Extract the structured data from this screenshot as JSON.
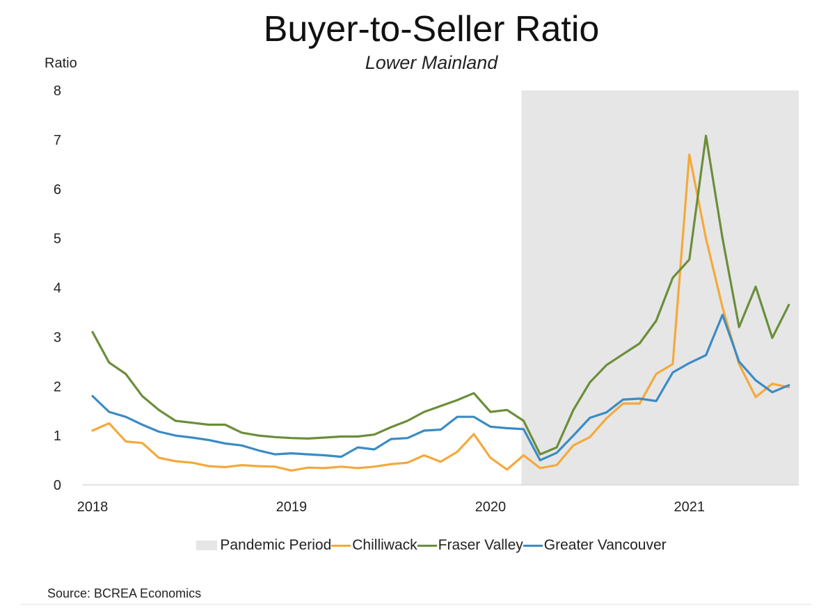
{
  "chart_data": {
    "type": "line",
    "title": "Buyer-to-Seller Ratio",
    "subtitle": "Lower Mainland",
    "ylabel": "Ratio",
    "ylim": [
      0,
      8
    ],
    "yticks": [
      "0",
      "1",
      "2",
      "3",
      "4",
      "5",
      "6",
      "7",
      "8"
    ],
    "x_start": "2018-01",
    "x_end": "2021-07",
    "xticks": [
      {
        "label": "2018",
        "month": "2018-01"
      },
      {
        "label": "2019",
        "month": "2019-01"
      },
      {
        "label": "2020",
        "month": "2020-01"
      },
      {
        "label": "2021",
        "month": "2021-01"
      }
    ],
    "grid": false,
    "legend_position": "bottom",
    "shaded_region": {
      "name": "Pandemic Period",
      "start": "2020-03",
      "end": "2021-07",
      "color": "#e6e6e6"
    },
    "x": [
      "2018-01",
      "2018-02",
      "2018-03",
      "2018-04",
      "2018-05",
      "2018-06",
      "2018-07",
      "2018-08",
      "2018-09",
      "2018-10",
      "2018-11",
      "2018-12",
      "2019-01",
      "2019-02",
      "2019-03",
      "2019-04",
      "2019-05",
      "2019-06",
      "2019-07",
      "2019-08",
      "2019-09",
      "2019-10",
      "2019-11",
      "2019-12",
      "2020-01",
      "2020-02",
      "2020-03",
      "2020-04",
      "2020-05",
      "2020-06",
      "2020-07",
      "2020-08",
      "2020-09",
      "2020-10",
      "2020-11",
      "2020-12",
      "2021-01",
      "2021-02",
      "2021-03",
      "2021-04",
      "2021-05",
      "2021-06",
      "2021-07"
    ],
    "series": [
      {
        "name": "Chilliwack",
        "color": "#f4a93b",
        "values": [
          1.1,
          1.25,
          0.88,
          0.85,
          0.55,
          0.48,
          0.45,
          0.38,
          0.36,
          0.4,
          0.38,
          0.37,
          0.29,
          0.35,
          0.34,
          0.37,
          0.34,
          0.37,
          0.42,
          0.45,
          0.6,
          0.47,
          0.67,
          1.03,
          0.55,
          0.31,
          0.6,
          0.34,
          0.4,
          0.8,
          0.97,
          1.35,
          1.65,
          1.65,
          2.25,
          2.45,
          6.7,
          5.0,
          3.6,
          2.45,
          1.78,
          2.05,
          1.98
        ]
      },
      {
        "name": "Fraser Valley",
        "color": "#6b8e3a",
        "values": [
          3.1,
          2.48,
          2.25,
          1.8,
          1.52,
          1.3,
          1.26,
          1.22,
          1.22,
          1.06,
          1.0,
          0.97,
          0.95,
          0.94,
          0.96,
          0.98,
          0.98,
          1.02,
          1.17,
          1.3,
          1.48,
          1.6,
          1.72,
          1.86,
          1.48,
          1.52,
          1.3,
          0.62,
          0.76,
          1.52,
          2.08,
          2.43,
          2.65,
          2.87,
          3.33,
          4.2,
          4.57,
          7.08,
          5.0,
          3.2,
          4.02,
          2.98,
          3.65
        ]
      },
      {
        "name": "Greater Vancouver",
        "color": "#3b8bc4",
        "values": [
          1.8,
          1.48,
          1.38,
          1.22,
          1.08,
          1.0,
          0.96,
          0.91,
          0.84,
          0.8,
          0.7,
          0.62,
          0.64,
          0.62,
          0.6,
          0.57,
          0.76,
          0.72,
          0.93,
          0.95,
          1.1,
          1.12,
          1.38,
          1.38,
          1.18,
          1.15,
          1.13,
          0.5,
          0.65,
          1.0,
          1.36,
          1.47,
          1.73,
          1.75,
          1.7,
          2.28,
          2.47,
          2.63,
          3.45,
          2.5,
          2.12,
          1.88,
          2.02
        ]
      }
    ]
  },
  "legend": {
    "pandemic": "Pandemic Period",
    "chilliwack": "Chilliwack",
    "fraser": "Fraser Valley",
    "vancouver": "Greater Vancouver",
    "pandemic_color": "#e6e6e6",
    "chilliwack_color": "#f4a93b",
    "fraser_color": "#6b8e3a",
    "vancouver_color": "#3b8bc4"
  },
  "source": "Source: BCREA Economics"
}
